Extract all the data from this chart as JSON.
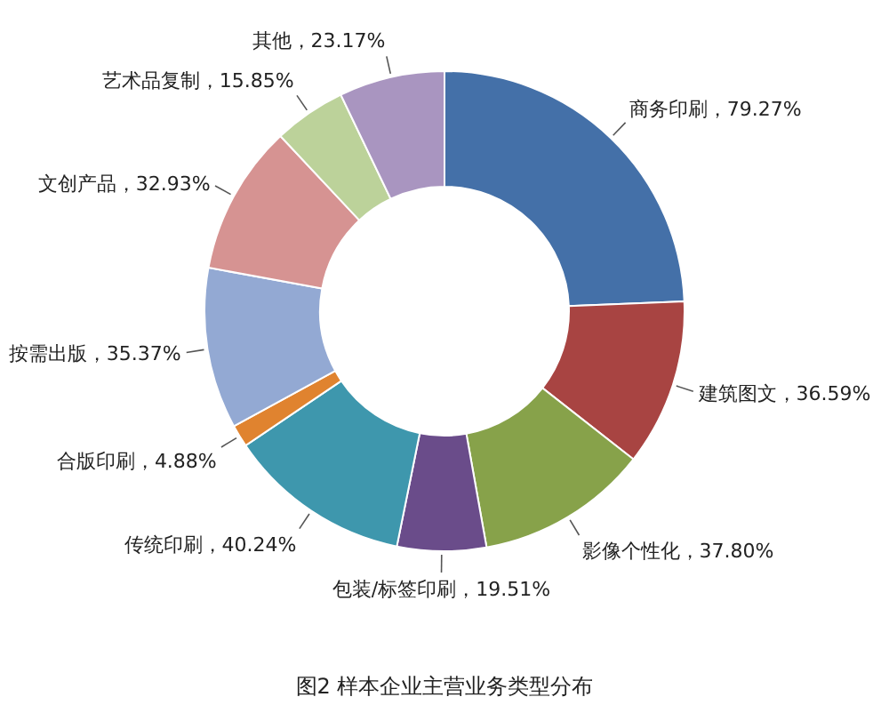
{
  "chart_data": {
    "type": "donut",
    "title": "图2 样本企业主营业务类型分布",
    "categories": [
      "商务印刷",
      "建筑图文",
      "影像个性化",
      "包装/标签印刷",
      "传统印刷",
      "合版印刷",
      "按需出版",
      "文创产品",
      "艺术品复制",
      "其他"
    ],
    "values": [
      79.27,
      36.59,
      37.8,
      19.51,
      40.24,
      4.88,
      35.37,
      32.93,
      15.85,
      23.17
    ],
    "colors": [
      "#4470a8",
      "#a84442",
      "#87a24a",
      "#6a4c8a",
      "#3e97ad",
      "#e0832f",
      "#93a9d3",
      "#d69392",
      "#bcd29a",
      "#a995c0"
    ],
    "value_labels": [
      "，79.27%",
      "，36.59%",
      "，37.80%",
      "，19.51%",
      "，40.24%",
      "，4.88%",
      "，35.37%",
      "，32.93%",
      "，15.85%",
      "，23.17%"
    ]
  }
}
